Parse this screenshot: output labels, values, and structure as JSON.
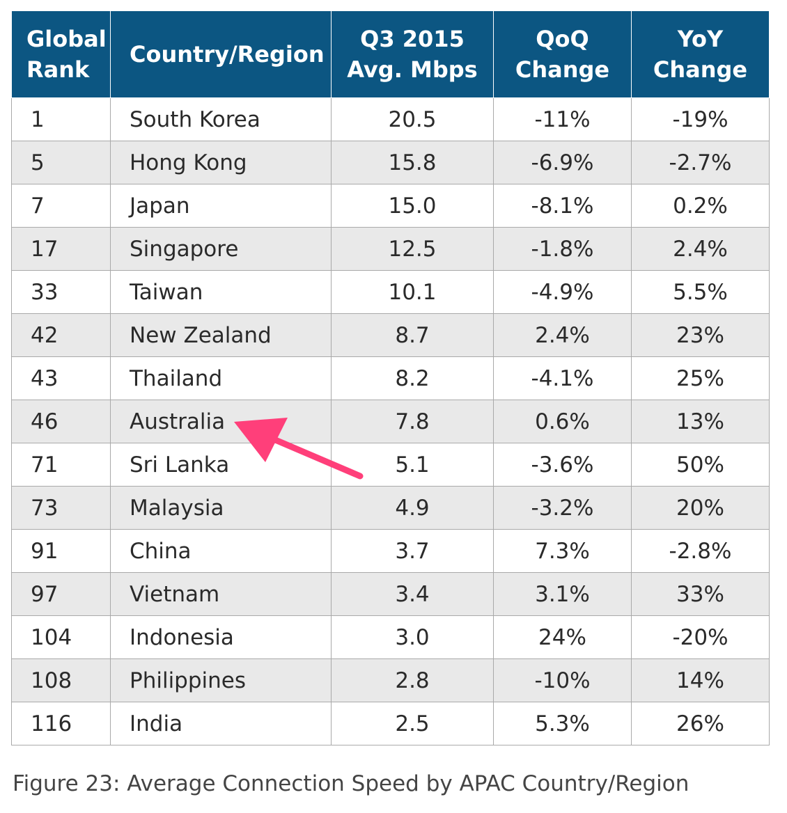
{
  "table": {
    "headers": {
      "rank": [
        "Global",
        "Rank"
      ],
      "country": [
        "Country/Region"
      ],
      "speed": [
        "Q3 2015",
        "Avg. Mbps"
      ],
      "qoq": [
        "QoQ",
        "Change"
      ],
      "yoy": [
        "YoY",
        "Change"
      ]
    },
    "rows": [
      {
        "rank": "1",
        "country": "South Korea",
        "speed": "20.5",
        "qoq": "-11%",
        "yoy": "-19%"
      },
      {
        "rank": "5",
        "country": "Hong Kong",
        "speed": "15.8",
        "qoq": "-6.9%",
        "yoy": "-2.7%"
      },
      {
        "rank": "7",
        "country": "Japan",
        "speed": "15.0",
        "qoq": "-8.1%",
        "yoy": "0.2%"
      },
      {
        "rank": "17",
        "country": "Singapore",
        "speed": "12.5",
        "qoq": "-1.8%",
        "yoy": "2.4%"
      },
      {
        "rank": "33",
        "country": "Taiwan",
        "speed": "10.1",
        "qoq": "-4.9%",
        "yoy": "5.5%"
      },
      {
        "rank": "42",
        "country": "New Zealand",
        "speed": "8.7",
        "qoq": "2.4%",
        "yoy": "23%"
      },
      {
        "rank": "43",
        "country": "Thailand",
        "speed": "8.2",
        "qoq": "-4.1%",
        "yoy": "25%"
      },
      {
        "rank": "46",
        "country": "Australia",
        "speed": "7.8",
        "qoq": "0.6%",
        "yoy": "13%"
      },
      {
        "rank": "71",
        "country": "Sri Lanka",
        "speed": "5.1",
        "qoq": "-3.6%",
        "yoy": "50%"
      },
      {
        "rank": "73",
        "country": "Malaysia",
        "speed": "4.9",
        "qoq": "-3.2%",
        "yoy": "20%"
      },
      {
        "rank": "91",
        "country": "China",
        "speed": "3.7",
        "qoq": "7.3%",
        "yoy": "-2.8%"
      },
      {
        "rank": "97",
        "country": "Vietnam",
        "speed": "3.4",
        "qoq": "3.1%",
        "yoy": "33%"
      },
      {
        "rank": "104",
        "country": "Indonesia",
        "speed": "3.0",
        "qoq": "24%",
        "yoy": "-20%"
      },
      {
        "rank": "108",
        "country": "Philippines",
        "speed": "2.8",
        "qoq": "-10%",
        "yoy": "14%"
      },
      {
        "rank": "116",
        "country": "India",
        "speed": "2.5",
        "qoq": "5.3%",
        "yoy": "26%"
      }
    ]
  },
  "caption": "Figure 23: Average Connection Speed by APAC Country/Region",
  "colors": {
    "header_bg": "#0c5682",
    "header_text": "#ffffff",
    "alt_row_bg": "#e9e9e9",
    "arrow": "#ff3f7a"
  },
  "annotation": {
    "icon": "arrow-icon",
    "points_to_row": 7
  }
}
